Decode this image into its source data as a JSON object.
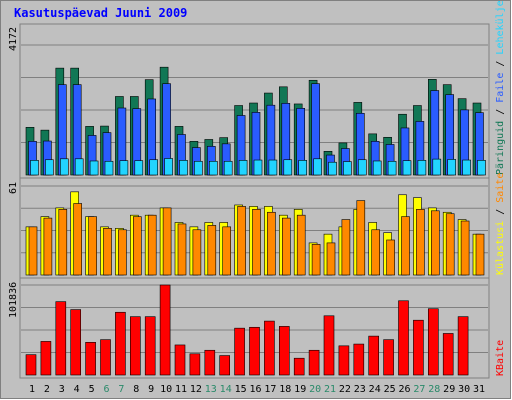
{
  "colors": {
    "background": "#c0c0c0",
    "title": "#0000ff",
    "grid": "#808080",
    "pages_dark": "#117755",
    "hits_outer": "#0040c0",
    "files": "#2a5cff",
    "visits": "#22d4ff",
    "hosts_yellow": "#ffff00",
    "hosts_orange": "#ff8800",
    "kbytes_red": "#ff0000",
    "weekend_label": "#2a8a6a"
  },
  "chart_data": {
    "type": "bar",
    "title": "Kasutuspäevad Juuni 2009",
    "x": [
      "1",
      "2",
      "3",
      "4",
      "5",
      "6",
      "7",
      "8",
      "9",
      "10",
      "11",
      "12",
      "13",
      "14",
      "15",
      "16",
      "17",
      "18",
      "19",
      "20",
      "21",
      "22",
      "23",
      "24",
      "25",
      "26",
      "27",
      "28",
      "29",
      "30",
      "31"
    ],
    "weekend_days": [
      "6",
      "7",
      "13",
      "14",
      "20",
      "21",
      "27",
      "28"
    ],
    "panels": [
      {
        "id": "top",
        "max_label": "4172",
        "ymax": 4172,
        "legend": [
          {
            "text": "Päringuid",
            "color": "#117755"
          },
          {
            "text": "Faile",
            "color": "#2a5cff"
          },
          {
            "text": "Leheküljed",
            "color": "#22d4ff"
          },
          {
            "text": "Külastusi",
            "color": "#ffff00"
          }
        ],
        "series": [
          {
            "values": [
              1530,
              1440,
              3430,
              3430,
              1560,
              1570,
              2520,
              2520,
              3060,
              3460,
              1560,
              1080,
              1140,
              1200,
              2230,
              2310,
              2630,
              2830,
              2280,
              3040,
              760,
              1030,
              2330,
              1320,
              1210,
              1950,
              2230,
              3070,
              2900,
              2450,
              2310
            ]
          },
          {
            "values": [
              1080,
              1090,
              2900,
              2900,
              1270,
              1360,
              2150,
              2130,
              2440,
              2930,
              1300,
              880,
              920,
              1000,
              1910,
              2010,
              2240,
              2300,
              2140,
              2930,
              640,
              850,
              1980,
              1080,
              980,
              1510,
              1720,
              2710,
              2580,
              2090,
              2000
            ]
          },
          {
            "values": [
              470,
              490,
              520,
              520,
              450,
              440,
              460,
              460,
              490,
              530,
              470,
              440,
              440,
              440,
              470,
              480,
              480,
              490,
              470,
              520,
              410,
              430,
              490,
              450,
              440,
              460,
              470,
              510,
              500,
              480,
              470
            ]
          },
          {
            "values": [
              190,
              200,
              220,
              230,
              200,
              180,
              200,
              200,
              230,
              230,
              190,
              180,
              200,
              190,
              210,
              220,
              210,
              220,
              190,
              220,
              170,
              180,
              210,
              180,
              180,
              190,
              200,
              220,
              210,
              200,
              190
            ]
          }
        ]
      },
      {
        "id": "middle",
        "max_label": "61",
        "ymax": 61,
        "legend": [
          {
            "text": "Külastusi",
            "color": "#ffff00"
          },
          {
            "text": "Saite",
            "color": "#ff8800"
          }
        ],
        "series": [
          {
            "values": [
              33,
              40,
              46,
              57,
              40,
              33,
              32,
              41,
              41,
              46,
              36,
              33,
              36,
              36,
              48,
              47,
              47,
              41,
              45,
              22,
              28,
              33,
              45,
              36,
              29,
              55,
              53,
              46,
              43,
              38,
              28
            ]
          },
          {
            "values": [
              33,
              39,
              45,
              49,
              40,
              32,
              31,
              40,
              41,
              46,
              35,
              31,
              34,
              33,
              47,
              45,
              43,
              39,
              41,
              21,
              22,
              38,
              51,
              31,
              24,
              40,
              45,
              44,
              42,
              37,
              28
            ]
          }
        ]
      },
      {
        "id": "bottom",
        "max_label": "101836",
        "ymax": 101836,
        "legend": [
          {
            "text": "KBaite",
            "color": "#ff0000"
          }
        ],
        "series": [
          {
            "values": [
              23000,
              38000,
              83000,
              74000,
              37000,
              40000,
              71000,
              66000,
              66000,
              101836,
              34000,
              24000,
              28000,
              22000,
              53000,
              54000,
              61000,
              55000,
              19000,
              28000,
              67000,
              33000,
              35000,
              44000,
              40000,
              84000,
              62000,
              75000,
              47000,
              66000,
              0
            ]
          }
        ]
      }
    ]
  }
}
